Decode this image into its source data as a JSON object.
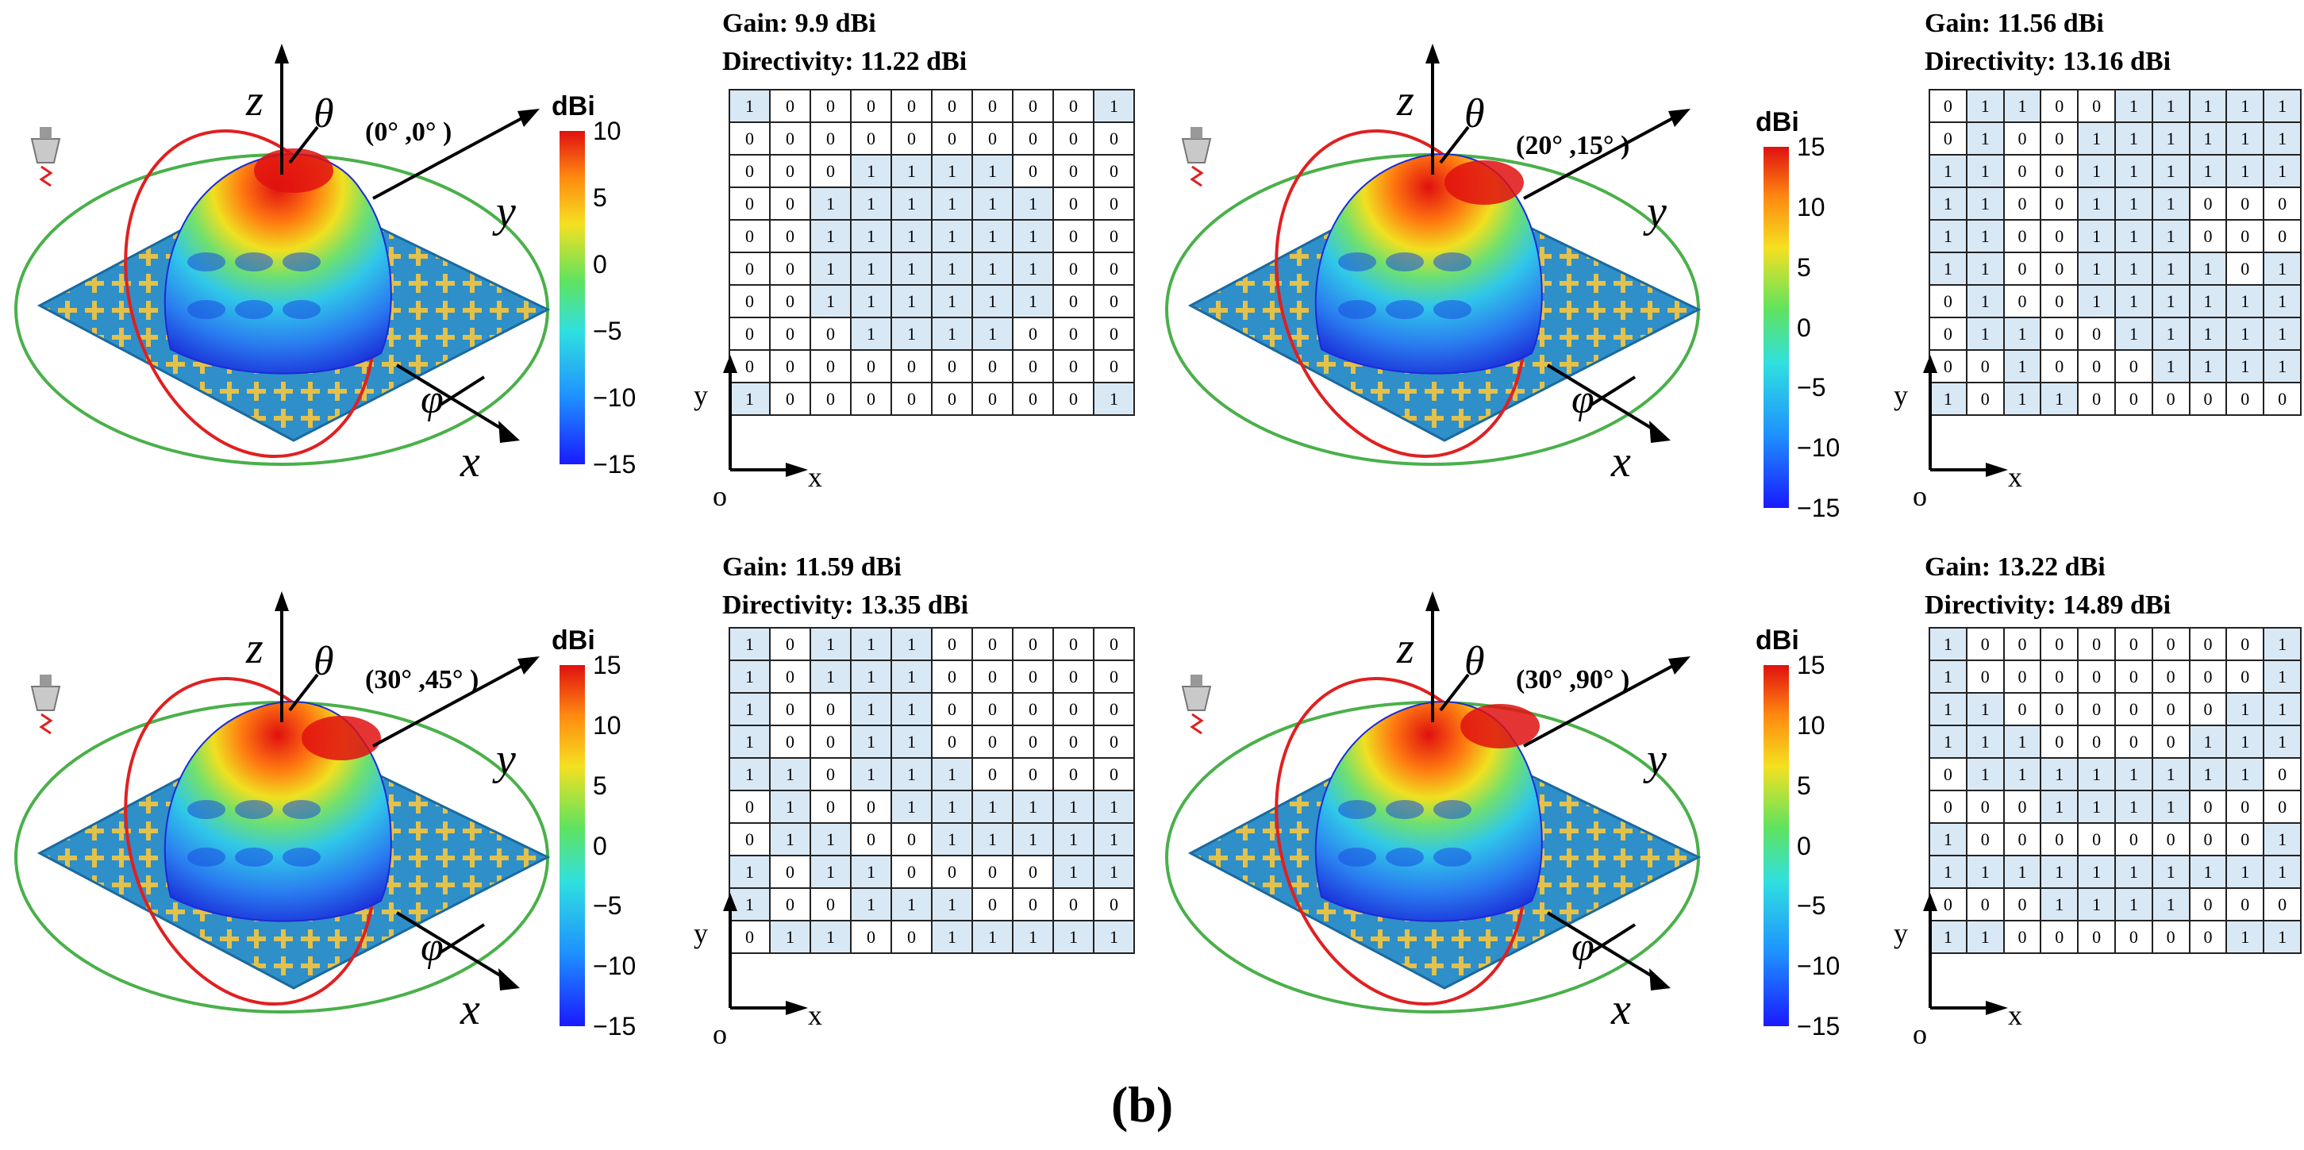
{
  "caption": "(b)",
  "colorbar_title": "dBi",
  "axis_labels": {
    "z": "z",
    "theta": "θ",
    "y": "y",
    "phi": "φ",
    "x": "x",
    "grid_y": "y",
    "grid_x": "x",
    "grid_o": "o"
  },
  "panels": [
    {
      "angle": "(0°  ,0°  )",
      "gain": "Gain: 9.9 dBi",
      "directivity": "Directivity: 11.22 dBi",
      "colorbar_ticks": [
        "10",
        "5",
        "0",
        "−5",
        "−10",
        "−15"
      ],
      "grid": [
        [
          1,
          0,
          0,
          0,
          0,
          0,
          0,
          0,
          0,
          1
        ],
        [
          0,
          0,
          0,
          0,
          0,
          0,
          0,
          0,
          0,
          0
        ],
        [
          0,
          0,
          0,
          1,
          1,
          1,
          1,
          0,
          0,
          0
        ],
        [
          0,
          0,
          1,
          1,
          1,
          1,
          1,
          1,
          0,
          0
        ],
        [
          0,
          0,
          1,
          1,
          1,
          1,
          1,
          1,
          0,
          0
        ],
        [
          0,
          0,
          1,
          1,
          1,
          1,
          1,
          1,
          0,
          0
        ],
        [
          0,
          0,
          1,
          1,
          1,
          1,
          1,
          1,
          0,
          0
        ],
        [
          0,
          0,
          0,
          1,
          1,
          1,
          1,
          0,
          0,
          0
        ],
        [
          0,
          0,
          0,
          0,
          0,
          0,
          0,
          0,
          0,
          0
        ],
        [
          1,
          0,
          0,
          0,
          0,
          0,
          0,
          0,
          0,
          1
        ]
      ]
    },
    {
      "angle": "(20°  ,15°  )",
      "gain": "Gain: 11.56 dBi",
      "directivity": "Directivity: 13.16 dBi",
      "colorbar_ticks": [
        "15",
        "10",
        "5",
        "0",
        "−5",
        "−10",
        "−15"
      ],
      "grid": [
        [
          0,
          1,
          1,
          0,
          0,
          1,
          1,
          1,
          1,
          1
        ],
        [
          0,
          1,
          0,
          0,
          1,
          1,
          1,
          1,
          1,
          1
        ],
        [
          1,
          1,
          0,
          0,
          1,
          1,
          1,
          1,
          1,
          1
        ],
        [
          1,
          1,
          0,
          0,
          1,
          1,
          1,
          0,
          0,
          0
        ],
        [
          1,
          1,
          0,
          0,
          1,
          1,
          1,
          0,
          0,
          0
        ],
        [
          1,
          1,
          0,
          0,
          1,
          1,
          1,
          1,
          0,
          1
        ],
        [
          0,
          1,
          0,
          0,
          1,
          1,
          1,
          1,
          1,
          1
        ],
        [
          0,
          1,
          1,
          0,
          0,
          1,
          1,
          1,
          1,
          1
        ],
        [
          0,
          0,
          1,
          0,
          0,
          0,
          1,
          1,
          1,
          1
        ],
        [
          1,
          0,
          1,
          1,
          0,
          0,
          0,
          0,
          0,
          0
        ]
      ]
    },
    {
      "angle": "(30°  ,45°  )",
      "gain": "Gain: 11.59 dBi",
      "directivity": "Directivity: 13.35 dBi",
      "colorbar_ticks": [
        "15",
        "10",
        "5",
        "0",
        "−5",
        "−10",
        "−15"
      ],
      "grid": [
        [
          1,
          0,
          1,
          1,
          1,
          0,
          0,
          0,
          0,
          0
        ],
        [
          1,
          0,
          1,
          1,
          1,
          0,
          0,
          0,
          0,
          0
        ],
        [
          1,
          0,
          0,
          1,
          1,
          0,
          0,
          0,
          0,
          0
        ],
        [
          1,
          0,
          0,
          1,
          1,
          0,
          0,
          0,
          0,
          0
        ],
        [
          1,
          1,
          0,
          1,
          1,
          1,
          0,
          0,
          0,
          0
        ],
        [
          0,
          1,
          0,
          0,
          1,
          1,
          1,
          1,
          1,
          1
        ],
        [
          0,
          1,
          1,
          0,
          0,
          1,
          1,
          1,
          1,
          1
        ],
        [
          1,
          0,
          1,
          1,
          0,
          0,
          0,
          0,
          1,
          1
        ],
        [
          1,
          0,
          0,
          1,
          1,
          1,
          0,
          0,
          0,
          0
        ],
        [
          0,
          1,
          1,
          0,
          0,
          1,
          1,
          1,
          1,
          1
        ]
      ]
    },
    {
      "angle": "(30°  ,90°  )",
      "gain": "Gain: 13.22 dBi",
      "directivity": "Directivity: 14.89 dBi",
      "colorbar_ticks": [
        "15",
        "10",
        "5",
        "0",
        "−5",
        "−10",
        "−15"
      ],
      "grid": [
        [
          1,
          0,
          0,
          0,
          0,
          0,
          0,
          0,
          0,
          1
        ],
        [
          1,
          0,
          0,
          0,
          0,
          0,
          0,
          0,
          0,
          1
        ],
        [
          1,
          1,
          0,
          0,
          0,
          0,
          0,
          0,
          1,
          1
        ],
        [
          1,
          1,
          1,
          0,
          0,
          0,
          0,
          1,
          1,
          1
        ],
        [
          0,
          1,
          1,
          1,
          1,
          1,
          1,
          1,
          1,
          0
        ],
        [
          0,
          0,
          0,
          1,
          1,
          1,
          1,
          0,
          0,
          0
        ],
        [
          1,
          0,
          0,
          0,
          0,
          0,
          0,
          0,
          0,
          1
        ],
        [
          1,
          1,
          1,
          1,
          1,
          1,
          1,
          1,
          1,
          1
        ],
        [
          0,
          0,
          0,
          1,
          1,
          1,
          1,
          0,
          0,
          0
        ],
        [
          1,
          1,
          0,
          0,
          0,
          0,
          0,
          0,
          1,
          1
        ]
      ]
    }
  ]
}
